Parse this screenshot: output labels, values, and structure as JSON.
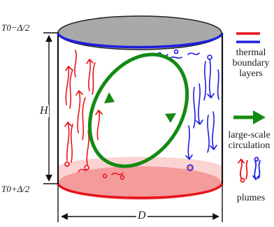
{
  "labels": {
    "top_temp": "T0−Δ/2",
    "bottom_temp": "T0+Δ/2",
    "height": "H",
    "diameter": "D"
  },
  "legend": {
    "thermal": "thermal\nboundary\nlayers",
    "circulation": "large-scale\ncirculation",
    "plumes": "plumes"
  },
  "colors": {
    "hot": "#e8141b",
    "cold": "#1d1de0",
    "circulation": "#138a13",
    "top_plate": "#a9a9a9",
    "bottom_plate": "#f7a9a9",
    "outline": "#111111"
  }
}
